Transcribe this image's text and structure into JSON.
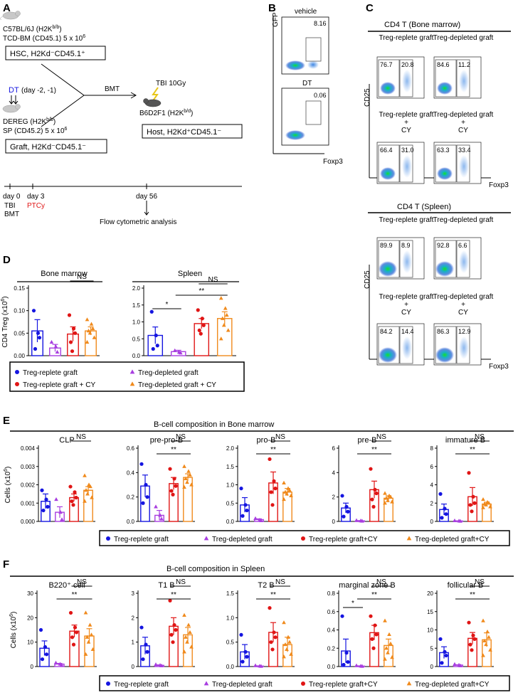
{
  "panels": {
    "A": "A",
    "B": "B",
    "C": "C",
    "D": "D",
    "E": "E",
    "F": "F"
  },
  "schematic": {
    "donor_line1": "C57BL/6J (H2K",
    "donor_sup1": "b/b",
    "donor_line2": "TCD-BM (CD45.1) 5 x 10",
    "donor_sup2": "6",
    "box_hsc": "HSC, H2Kd⁻CD45.1⁺",
    "dt_label": "DT",
    "dt_days": "(day -2, -1)",
    "dereg_line1": "DEREG (H2K",
    "dereg_sup1": "b/b",
    "dereg_line2": "SP (CD45.2) 5 x 10",
    "dereg_sup2": "6",
    "box_graft": "Graft, H2Kd⁻CD45.1⁻",
    "bmt": "BMT",
    "tbi_dose": "TBI 10Gy",
    "host_line": "B6D2F1 (H2K",
    "host_sup": "b/d",
    "box_host": "Host, H2Kd⁺CD45.1⁻",
    "timeline": {
      "day0": "day 0",
      "day3": "day 3",
      "day56": "day 56",
      "tbi": "TBI",
      "bmt": "BMT",
      "ptcy": "PTCy",
      "flow": "Flow cytometric analysis"
    }
  },
  "panelB": {
    "y_axis": "GFP",
    "x_axis": "Foxp3",
    "plots": [
      {
        "label": "vehicle",
        "value": "8.16"
      },
      {
        "label": "DT",
        "value": "0.06"
      }
    ]
  },
  "panelC": {
    "header_bm": "CD4 T (Bone marrow)",
    "header_spleen": "CD4 T (Spleen)",
    "y_axis": "CD25",
    "x_axis": "Foxp3",
    "bm_plots": [
      {
        "title": "Treg-replete graft",
        "left": "76.7",
        "right": "20.8"
      },
      {
        "title": "Treg-depleted graft",
        "left": "84.6",
        "right": "11.2"
      },
      {
        "title": "Treg-replete graft\n+\nCY",
        "left": "66.4",
        "right": "31.0"
      },
      {
        "title": "Treg-depleted graft\n+\nCY",
        "left": "63.3",
        "right": "33.4"
      }
    ],
    "spleen_plots": [
      {
        "title": "Treg-replete graft",
        "left": "89.9",
        "right": "8.9"
      },
      {
        "title": "Treg-depleted graft",
        "left": "92.8",
        "right": "6.6"
      },
      {
        "title": "Treg-replete graft\n+\nCY",
        "left": "84.2",
        "right": "14.4"
      },
      {
        "title": "Treg-depleted graft\n+\nCY",
        "left": "86.3",
        "right": "12.9"
      }
    ],
    "plus": "+",
    "cy": "CY"
  },
  "legend_d": [
    {
      "label": "Treg-replete graft",
      "color": "#1515e0",
      "shape": "circle"
    },
    {
      "label": "Treg-depleted graft",
      "color": "#a83ee0",
      "shape": "triangle"
    },
    {
      "label": "Treg-replete graft + CY",
      "color": "#e01515",
      "shape": "circle"
    },
    {
      "label": "Treg-depleted graft + CY",
      "color": "#f08a1c",
      "shape": "triangle"
    }
  ],
  "legend_ef": [
    {
      "label": "Treg-replete graft",
      "color": "#1515e0",
      "shape": "circle"
    },
    {
      "label": "Treg-depleted graft",
      "color": "#a83ee0",
      "shape": "triangle"
    },
    {
      "label": "Treg-replete graft+CY",
      "color": "#e01515",
      "shape": "circle"
    },
    {
      "label": "Treg-depleted graft+CY",
      "color": "#f08a1c",
      "shape": "triangle"
    }
  ],
  "section_e": "B-cell composition in Bone marrow",
  "section_f": "B-cell composition in Spleen",
  "chart_data": [
    {
      "id": "D1",
      "type": "bar",
      "title": "Bone marrow",
      "ylabel": "CD4 Treg (x10",
      "ylabel_sup": "6",
      "ylabel_end": ")",
      "ylim": [
        0,
        0.15
      ],
      "ticks": [
        "0.00",
        "0.05",
        "0.10",
        "0.15"
      ],
      "means": [
        0.055,
        0.017,
        0.048,
        0.055
      ],
      "sem": [
        0.025,
        0.008,
        0.016,
        0.009
      ],
      "points": [
        [
          0.1,
          0.05,
          0.04,
          0.015
        ],
        [
          0.03,
          0.02,
          0.008
        ],
        [
          0.09,
          0.06,
          0.05,
          0.03,
          0.01
        ],
        [
          0.08,
          0.07,
          0.06,
          0.055,
          0.05,
          0.04,
          0.03
        ]
      ],
      "sig": [
        {
          "from": 2,
          "to": 3,
          "label": "NS"
        }
      ]
    },
    {
      "id": "D2",
      "type": "bar",
      "title": "Spleen",
      "ylim": [
        0,
        2.0
      ],
      "ticks": [
        "0.0",
        "0.5",
        "1.0",
        "1.5",
        "2.0"
      ],
      "means": [
        0.6,
        0.12,
        0.95,
        1.1
      ],
      "sem": [
        0.25,
        0.04,
        0.15,
        0.2
      ],
      "points": [
        [
          1.3,
          0.6,
          0.3,
          0.2
        ],
        [
          0.15,
          0.1,
          0.08
        ],
        [
          1.35,
          1.1,
          0.9,
          0.75,
          0.65
        ],
        [
          1.7,
          1.4,
          1.2,
          1.1,
          0.9,
          0.75,
          0.5
        ]
      ],
      "sig": [
        {
          "from": 0,
          "to": 1,
          "label": "*"
        },
        {
          "from": 1,
          "to": 3,
          "label": "**"
        },
        {
          "from": 2,
          "to": 3,
          "label": "NS"
        }
      ]
    },
    {
      "id": "E1",
      "type": "bar",
      "title": "CLP",
      "ylabel": "Cells (x10",
      "ylabel_sup": "6",
      "ylabel_end": ")",
      "ylim": [
        0,
        0.004
      ],
      "ticks": [
        "0.000",
        "0.001",
        "0.002",
        "0.003",
        "0.004"
      ],
      "means": [
        0.0011,
        0.0005,
        0.0013,
        0.0017
      ],
      "sem": [
        0.0004,
        0.0003,
        0.0002,
        0.0002
      ],
      "points": [
        [
          0.0017,
          0.0012,
          0.0008,
          0.0006
        ],
        [
          0.0012,
          0.0005,
          0.0001
        ],
        [
          0.0019,
          0.0016,
          0.0013,
          0.0011,
          0.0009
        ],
        [
          0.0025,
          0.002,
          0.0019,
          0.0017,
          0.0015,
          0.0013,
          0.0011
        ]
      ],
      "sig": [
        {
          "from": 2,
          "to": 3,
          "label": "NS"
        }
      ]
    },
    {
      "id": "E2",
      "type": "bar",
      "title": "pre-pro-B",
      "ylim": [
        0,
        0.6
      ],
      "ticks": [
        "0.0",
        "0.2",
        "0.4",
        "0.6"
      ],
      "means": [
        0.29,
        0.05,
        0.31,
        0.36
      ],
      "sem": [
        0.09,
        0.04,
        0.05,
        0.03
      ],
      "points": [
        [
          0.47,
          0.3,
          0.2,
          0.15
        ],
        [
          0.12,
          0.05,
          0.02
        ],
        [
          0.43,
          0.35,
          0.29,
          0.25,
          0.22
        ],
        [
          0.45,
          0.41,
          0.38,
          0.35,
          0.32,
          0.3,
          0.28
        ]
      ],
      "sig": [
        {
          "from": 1,
          "to": 3,
          "label": "**"
        },
        {
          "from": 2,
          "to": 3,
          "label": "NS"
        }
      ]
    },
    {
      "id": "E3",
      "type": "bar",
      "title": "pro-B",
      "ylim": [
        0,
        2.0
      ],
      "ticks": [
        "0.0",
        "0.5",
        "1.0",
        "1.5",
        "2.0"
      ],
      "means": [
        0.45,
        0.05,
        1.05,
        0.8
      ],
      "sem": [
        0.2,
        0.02,
        0.3,
        0.1
      ],
      "points": [
        [
          0.9,
          0.45,
          0.3,
          0.15
        ],
        [
          0.08,
          0.04,
          0.02
        ],
        [
          1.7,
          1.1,
          0.9,
          0.8,
          0.45
        ],
        [
          1.05,
          0.9,
          0.85,
          0.8,
          0.75,
          0.7,
          0.6
        ]
      ],
      "sig": [
        {
          "from": 1,
          "to": 3,
          "label": "**"
        },
        {
          "from": 2,
          "to": 3,
          "label": "NS"
        }
      ]
    },
    {
      "id": "E4",
      "type": "bar",
      "title": "pre-B",
      "ylim": [
        0,
        6
      ],
      "ticks": [
        "0",
        "2",
        "4",
        "6"
      ],
      "means": [
        1.1,
        0.05,
        2.6,
        1.9
      ],
      "sem": [
        0.4,
        0.02,
        0.7,
        0.2
      ],
      "points": [
        [
          2.1,
          1.2,
          0.8,
          0.4
        ],
        [
          0.08,
          0.05,
          0.03
        ],
        [
          4.3,
          2.6,
          2.3,
          1.8,
          1.2
        ],
        [
          2.3,
          2.1,
          2.0,
          1.9,
          1.7,
          1.6,
          1.5
        ]
      ],
      "sig": [
        {
          "from": 1,
          "to": 3,
          "label": "**"
        },
        {
          "from": 2,
          "to": 3,
          "label": "NS"
        }
      ]
    },
    {
      "id": "E5",
      "type": "bar",
      "title": "immature B",
      "ylim": [
        0,
        8
      ],
      "ticks": [
        "0",
        "2",
        "4",
        "6",
        "8"
      ],
      "means": [
        1.3,
        0.05,
        2.7,
        1.9
      ],
      "sem": [
        0.6,
        0.02,
        1.0,
        0.2
      ],
      "points": [
        [
          3.0,
          1.4,
          0.8,
          0.4
        ],
        [
          0.08,
          0.05,
          0.03
        ],
        [
          5.3,
          2.7,
          2.0,
          1.8,
          1.1
        ],
        [
          2.4,
          2.1,
          2.0,
          1.9,
          1.8,
          1.6,
          1.5
        ]
      ],
      "sig": [
        {
          "from": 1,
          "to": 3,
          "label": "**"
        },
        {
          "from": 2,
          "to": 3,
          "label": "NS"
        }
      ]
    },
    {
      "id": "F1",
      "type": "bar",
      "title": "B220⁺ cell",
      "ylabel": "Cells (x10",
      "ylabel_sup": "6",
      "ylabel_end": ")",
      "ylim": [
        0,
        30
      ],
      "ticks": [
        "0",
        "10",
        "20",
        "30"
      ],
      "means": [
        7.5,
        1.0,
        14.5,
        12.5
      ],
      "sem": [
        3.0,
        0.3,
        2.5,
        3.0
      ],
      "points": [
        [
          15,
          8,
          5,
          3
        ],
        [
          1.5,
          1.0,
          0.6
        ],
        [
          22,
          16,
          14,
          12,
          9
        ],
        [
          22,
          17,
          13,
          12,
          10,
          7,
          5
        ]
      ],
      "sig": [
        {
          "from": 1,
          "to": 3,
          "label": "**"
        },
        {
          "from": 2,
          "to": 3,
          "label": "NS"
        }
      ]
    },
    {
      "id": "F2",
      "type": "bar",
      "title": "T1 B",
      "ylim": [
        0,
        3
      ],
      "ticks": [
        "0",
        "1",
        "2",
        "3"
      ],
      "means": [
        0.85,
        0.05,
        1.65,
        1.3
      ],
      "sem": [
        0.35,
        0.02,
        0.35,
        0.3
      ],
      "points": [
        [
          1.6,
          0.9,
          0.6,
          0.3
        ],
        [
          0.08,
          0.05,
          0.03
        ],
        [
          2.7,
          1.7,
          1.5,
          1.3,
          1.0
        ],
        [
          2.1,
          1.7,
          1.4,
          1.2,
          1.0,
          0.8,
          0.6
        ]
      ],
      "sig": [
        {
          "from": 1,
          "to": 3,
          "label": "**"
        },
        {
          "from": 2,
          "to": 3,
          "label": "NS"
        }
      ]
    },
    {
      "id": "F3",
      "type": "bar",
      "title": "T2 B",
      "ylim": [
        0,
        1.5
      ],
      "ticks": [
        "0.0",
        "0.5",
        "1.0",
        "1.5"
      ],
      "means": [
        0.3,
        0.01,
        0.7,
        0.45
      ],
      "sem": [
        0.15,
        0.005,
        0.2,
        0.15
      ],
      "points": [
        [
          0.65,
          0.3,
          0.2,
          0.1
        ],
        [
          0.02,
          0.01,
          0.005
        ],
        [
          1.2,
          0.7,
          0.6,
          0.5,
          0.35
        ],
        [
          0.9,
          0.6,
          0.5,
          0.45,
          0.35,
          0.25,
          0.2
        ]
      ],
      "sig": [
        {
          "from": 1,
          "to": 3,
          "label": "**"
        },
        {
          "from": 2,
          "to": 3,
          "label": "NS"
        }
      ]
    },
    {
      "id": "F4",
      "type": "bar",
      "title": "marginal zone B",
      "ylim": [
        0,
        0.8
      ],
      "ticks": [
        "0.0",
        "0.2",
        "0.4",
        "0.6",
        "0.8"
      ],
      "means": [
        0.17,
        0.005,
        0.37,
        0.23
      ],
      "sem": [
        0.13,
        0.003,
        0.08,
        0.07
      ],
      "points": [
        [
          0.55,
          0.15,
          0.05,
          0.02
        ],
        [
          0.01,
          0.005,
          0.003
        ],
        [
          0.55,
          0.45,
          0.35,
          0.3,
          0.2
        ],
        [
          0.5,
          0.35,
          0.25,
          0.2,
          0.15,
          0.1,
          0.08
        ]
      ],
      "sig": [
        {
          "from": 0,
          "to": 1,
          "label": "*"
        },
        {
          "from": 1,
          "to": 3,
          "label": "**"
        },
        {
          "from": 2,
          "to": 3,
          "label": "NS"
        }
      ]
    },
    {
      "id": "F5",
      "type": "bar",
      "title": "follicular B",
      "ylim": [
        0,
        20
      ],
      "ticks": [
        "0",
        "5",
        "10",
        "15",
        "20"
      ],
      "means": [
        3.8,
        0.4,
        7.7,
        7.3
      ],
      "sem": [
        1.6,
        0.1,
        1.6,
        1.9
      ],
      "points": [
        [
          7.5,
          4,
          3,
          1
        ],
        [
          0.6,
          0.4,
          0.2
        ],
        [
          12,
          8.5,
          7.5,
          6,
          4.5
        ],
        [
          12.5,
          9.5,
          8,
          7,
          6,
          4.5,
          3
        ]
      ],
      "sig": [
        {
          "from": 1,
          "to": 3,
          "label": "**"
        },
        {
          "from": 2,
          "to": 3,
          "label": "NS"
        }
      ]
    }
  ]
}
